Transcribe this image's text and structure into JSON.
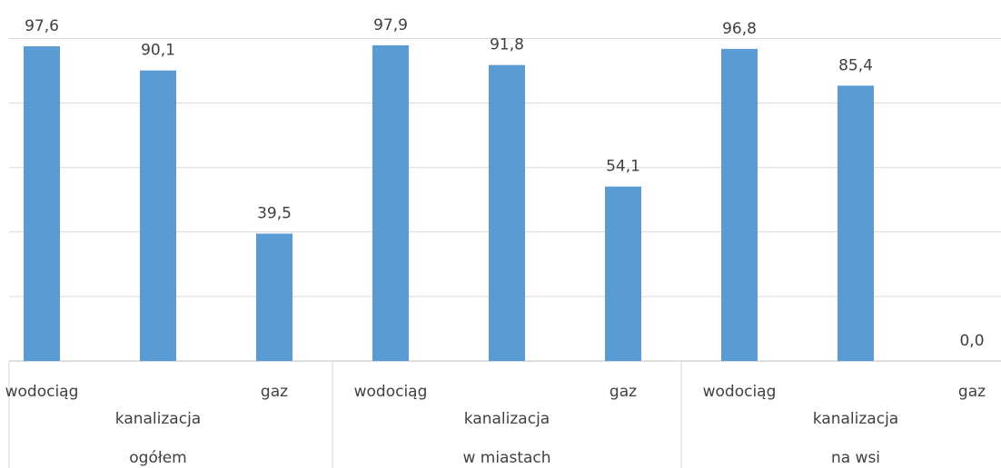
{
  "chart_data": {
    "type": "bar",
    "groups": [
      "ogółem",
      "w miastach",
      "na wsi"
    ],
    "categories": [
      "wodociąg",
      "kanalizacja",
      "gaz",
      "wodociąg",
      "kanalizacja",
      "gaz",
      "wodociąg",
      "kanalizacja",
      "gaz"
    ],
    "values": [
      97.6,
      90.1,
      39.5,
      97.9,
      91.8,
      54.1,
      96.8,
      85.4,
      0.0
    ],
    "value_labels": [
      "97,6",
      "90,1",
      "39,5",
      "97,9",
      "91,8",
      "54,1",
      "96,8",
      "85,4",
      "0,0"
    ],
    "color": "#5b9bd5",
    "ylim": [
      0,
      100
    ],
    "yticks": [
      0,
      20,
      40,
      60,
      80,
      100
    ],
    "show_ytick_labels": false,
    "grid": true
  }
}
